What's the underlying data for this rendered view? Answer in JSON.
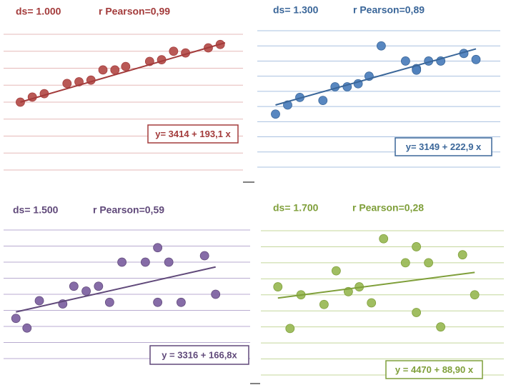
{
  "chart_data": [
    {
      "type": "scatter",
      "title": "ds= 1.000",
      "subtitle": "r Pearson=0,99",
      "equation": "y= 3414 + 193,1 x",
      "color": "#b5504d",
      "text_color": "#a33b3b",
      "grid_color": "#e6b9b8",
      "grid": true,
      "xlim": [
        0,
        20
      ],
      "ylim": [
        0,
        8
      ],
      "yticks": [
        0,
        1,
        2,
        3,
        4,
        5,
        6,
        7,
        8
      ],
      "x": [
        1.4,
        2.4,
        3.4,
        5.3,
        6.3,
        7.3,
        8.3,
        9.3,
        10.2,
        12.2,
        13.2,
        14.2,
        15.2,
        17.1,
        18.1
      ],
      "values": [
        4.0,
        4.3,
        4.5,
        5.1,
        5.2,
        5.3,
        5.9,
        5.9,
        6.1,
        6.4,
        6.5,
        7.0,
        6.9,
        7.2,
        7.4
      ],
      "trendline": {
        "x": [
          1.4,
          18.5
        ],
        "values": [
          4.0,
          7.5
        ]
      }
    },
    {
      "type": "scatter",
      "title": "ds= 1.300",
      "subtitle": "r Pearson=0,89",
      "equation": "y= 3149  + 222,9 x",
      "color": "#4f81bd",
      "text_color": "#3a6699",
      "grid_color": "#a9c1e0",
      "grid": true,
      "xlim": [
        0,
        20
      ],
      "ylim": [
        0,
        9
      ],
      "yticks": [
        0,
        1,
        2,
        3,
        4,
        5,
        6,
        7,
        8,
        9
      ],
      "x": [
        1.5,
        2.5,
        3.5,
        5.4,
        6.4,
        7.4,
        8.3,
        9.2,
        10.2,
        12.2,
        13.1,
        13.1,
        14.1,
        15.1,
        17.0,
        18.0
      ],
      "values": [
        3.5,
        4.1,
        4.6,
        4.4,
        5.3,
        5.3,
        5.5,
        6.0,
        8.0,
        7.0,
        6.5,
        6.4,
        7.0,
        7.0,
        7.5,
        7.1
      ],
      "trendline": {
        "x": [
          1.5,
          18.0
        ],
        "values": [
          4.1,
          7.8
        ]
      }
    },
    {
      "type": "scatter",
      "title": "ds= 1.500",
      "subtitle": "r Pearson=0,59",
      "equation": "y =  3316 + 166,8x",
      "color": "#8064a2",
      "text_color": "#60497a",
      "grid_color": "#b8abd0",
      "grid": true,
      "xlim": [
        0,
        20
      ],
      "ylim": [
        0,
        8
      ],
      "yticks": [
        0,
        1,
        2,
        3,
        4,
        5,
        6,
        7,
        8
      ],
      "x": [
        1.0,
        1.9,
        2.9,
        4.8,
        5.7,
        6.7,
        7.7,
        8.6,
        9.6,
        11.5,
        12.5,
        12.5,
        13.4,
        14.4,
        16.3,
        17.2
      ],
      "values": [
        2.5,
        1.9,
        3.6,
        3.4,
        4.5,
        4.2,
        4.5,
        3.5,
        6.0,
        6.0,
        3.5,
        6.9,
        6.0,
        3.5,
        6.4,
        4.0
      ],
      "trendline": {
        "x": [
          1.0,
          17.2
        ],
        "values": [
          2.9,
          5.7
        ]
      }
    },
    {
      "type": "scatter",
      "title": "ds= 1.700",
      "subtitle": "r Pearson=0,28",
      "equation": "y = 4470 + 88,90 x",
      "color": "#9bbb59",
      "text_color": "#7f9f3a",
      "grid_color": "#c4d79b",
      "grid": true,
      "xlim": [
        0,
        20
      ],
      "ylim": [
        0,
        9
      ],
      "yticks": [
        0,
        1,
        2,
        3,
        4,
        5,
        6,
        7,
        8,
        9
      ],
      "x": [
        1.4,
        2.4,
        3.3,
        5.2,
        6.2,
        7.2,
        8.1,
        9.1,
        10.1,
        11.9,
        12.8,
        12.8,
        13.8,
        14.8,
        16.6,
        17.6
      ],
      "values": [
        5.5,
        2.9,
        5.0,
        4.4,
        6.5,
        5.2,
        5.5,
        4.5,
        8.5,
        7.0,
        8.0,
        3.9,
        7.0,
        3.0,
        7.5,
        5.0
      ],
      "trendline": {
        "x": [
          1.4,
          17.6
        ],
        "values": [
          4.8,
          6.4
        ]
      }
    }
  ]
}
